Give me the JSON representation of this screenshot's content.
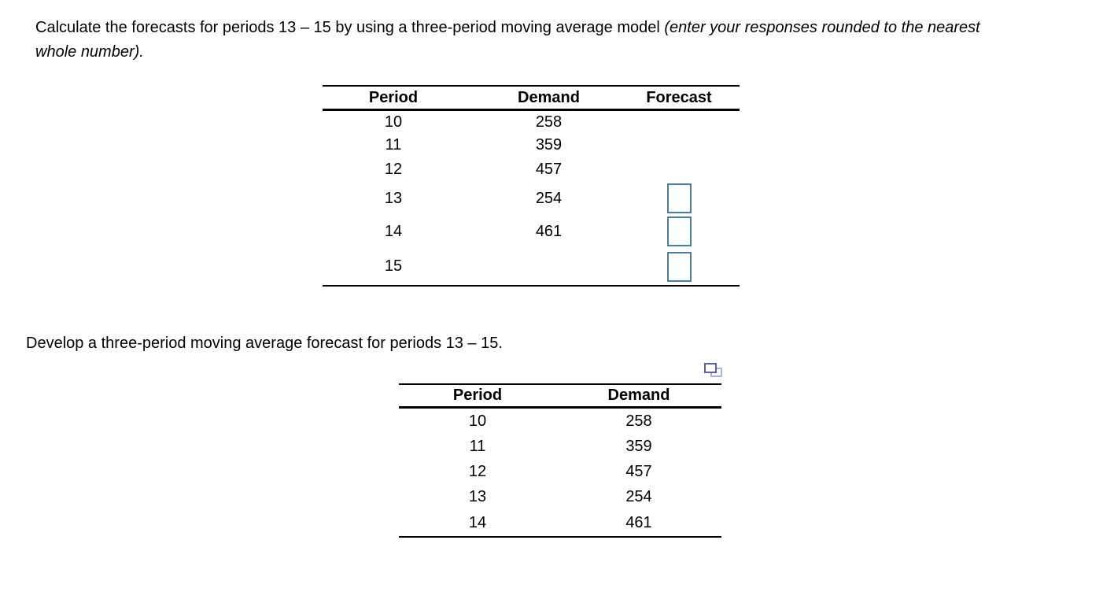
{
  "colors": {
    "text": "#000000",
    "line": "#000000",
    "input_border": "#47809e",
    "icon_front": "#5560b0",
    "icon_back": "#aab4dd"
  },
  "question1": {
    "text_regular": "Calculate the forecasts for periods 13 – 15 by using a three-period moving average model ",
    "text_italic": "(enter your responses rounded to the nearest whole number)."
  },
  "forecast_table": {
    "headers": [
      "Period",
      "Demand",
      "Forecast"
    ],
    "rows": [
      {
        "period": "10",
        "demand": "258"
      },
      {
        "period": "11",
        "demand": "359"
      },
      {
        "period": "12",
        "demand": "457"
      },
      {
        "period": "13",
        "demand": "254"
      },
      {
        "period": "14",
        "demand": "461"
      },
      {
        "period": "15",
        "demand": ""
      }
    ],
    "input_value_13": "",
    "input_value_14": "",
    "input_value_15": ""
  },
  "question2": {
    "text": "Develop a three-period moving average forecast for periods 13 – 15."
  },
  "icons": {
    "popup_table_icon": "copy-table-popup"
  },
  "demand_table": {
    "headers": [
      "Period",
      "Demand"
    ],
    "rows": [
      {
        "period": "10",
        "demand": "258"
      },
      {
        "period": "11",
        "demand": "359"
      },
      {
        "period": "12",
        "demand": "457"
      },
      {
        "period": "13",
        "demand": "254"
      },
      {
        "period": "14",
        "demand": "461"
      }
    ]
  }
}
